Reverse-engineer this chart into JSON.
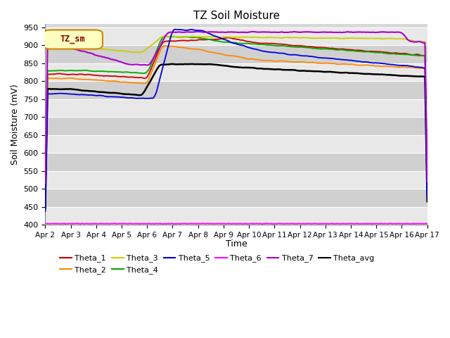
{
  "title": "TZ Soil Moisture",
  "xlabel": "Time",
  "ylabel": "Soil Moisture (mV)",
  "ylim": [
    400,
    960
  ],
  "yticks": [
    400,
    450,
    500,
    550,
    600,
    650,
    700,
    750,
    800,
    850,
    900,
    950
  ],
  "fig_bg_color": "#ffffff",
  "plot_bg_color": "#d8d8d8",
  "band_light": "#e8e8e8",
  "band_dark": "#d0d0d0",
  "grid_color": "#c0c0c0",
  "series": {
    "Theta_1": {
      "color": "#cc0000",
      "lw": 1.3
    },
    "Theta_2": {
      "color": "#ff8800",
      "lw": 1.3
    },
    "Theta_3": {
      "color": "#cccc00",
      "lw": 1.3
    },
    "Theta_4": {
      "color": "#00aa00",
      "lw": 1.3
    },
    "Theta_5": {
      "color": "#0000dd",
      "lw": 1.3
    },
    "Theta_6": {
      "color": "#ff00ff",
      "lw": 1.3
    },
    "Theta_7": {
      "color": "#aa00cc",
      "lw": 1.5
    },
    "Theta_avg": {
      "color": "#000000",
      "lw": 1.8
    }
  },
  "n_points": 500,
  "date_labels": [
    "Apr 2",
    "Apr 3",
    "Apr 4",
    "Apr 5",
    "Apr 6",
    "Apr 7",
    "Apr 8",
    "Apr 9",
    "Apr 10",
    "Apr 11",
    "Apr 12",
    "Apr 13",
    "Apr 14",
    "Apr 15",
    "Apr 16",
    "Apr 17"
  ],
  "legend_label": "TZ_sm",
  "legend_bg": "#ffffc0",
  "legend_border": "#cc8800"
}
